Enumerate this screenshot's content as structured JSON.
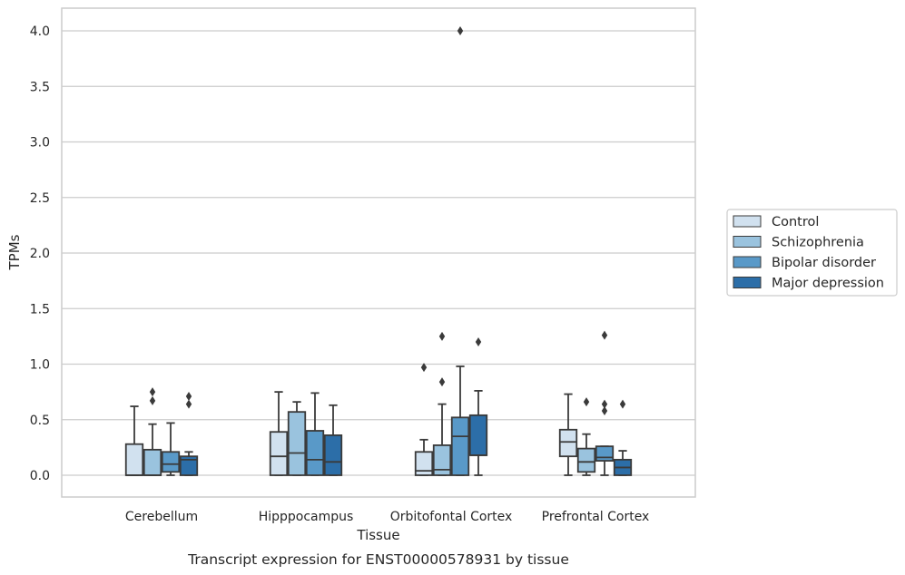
{
  "caption": "Transcript expression for ENST00000578931 by tissue",
  "chart_data": {
    "type": "box",
    "xlabel": "Tissue",
    "ylabel": "TPMs",
    "ylim": [
      -0.2,
      4.2
    ],
    "yticks": [
      "0.0",
      "0.5",
      "1.0",
      "1.5",
      "2.0",
      "2.5",
      "3.0",
      "3.5",
      "4.0"
    ],
    "grid": "horizontal",
    "legend_position": "right",
    "categories": [
      "Cerebellum",
      "Hipppocampus",
      "Orbitofontal Cortex",
      "Prefrontal Cortex"
    ],
    "series": [
      {
        "name": "Control",
        "color": "#d1e1ef",
        "boxes": [
          {
            "whislo": 0.0,
            "q1": 0.0,
            "med": 0.0,
            "q3": 0.28,
            "whishi": 0.62,
            "fliers": []
          },
          {
            "whislo": 0.0,
            "q1": 0.0,
            "med": 0.17,
            "q3": 0.39,
            "whishi": 0.75,
            "fliers": []
          },
          {
            "whislo": 0.0,
            "q1": 0.0,
            "med": 0.04,
            "q3": 0.21,
            "whishi": 0.32,
            "fliers": [
              0.97
            ]
          },
          {
            "whislo": 0.0,
            "q1": 0.17,
            "med": 0.3,
            "q3": 0.41,
            "whishi": 0.73,
            "fliers": []
          }
        ]
      },
      {
        "name": "Schizophrenia",
        "color": "#9ac3de",
        "boxes": [
          {
            "whislo": 0.0,
            "q1": 0.0,
            "med": 0.0,
            "q3": 0.23,
            "whishi": 0.46,
            "fliers": [
              0.67,
              0.75
            ]
          },
          {
            "whislo": 0.0,
            "q1": 0.0,
            "med": 0.2,
            "q3": 0.57,
            "whishi": 0.66,
            "fliers": []
          },
          {
            "whislo": 0.0,
            "q1": 0.0,
            "med": 0.05,
            "q3": 0.27,
            "whishi": 0.64,
            "fliers": [
              0.84,
              1.25
            ]
          },
          {
            "whislo": 0.0,
            "q1": 0.03,
            "med": 0.12,
            "q3": 0.24,
            "whishi": 0.37,
            "fliers": [
              0.66
            ]
          }
        ]
      },
      {
        "name": "Bipolar disorder",
        "color": "#5999c8",
        "boxes": [
          {
            "whislo": 0.0,
            "q1": 0.03,
            "med": 0.1,
            "q3": 0.21,
            "whishi": 0.47,
            "fliers": []
          },
          {
            "whislo": 0.0,
            "q1": 0.0,
            "med": 0.14,
            "q3": 0.4,
            "whishi": 0.74,
            "fliers": []
          },
          {
            "whislo": 0.0,
            "q1": 0.0,
            "med": 0.35,
            "q3": 0.52,
            "whishi": 0.98,
            "fliers": [
              4.0
            ]
          },
          {
            "whislo": 0.0,
            "q1": 0.13,
            "med": 0.16,
            "q3": 0.26,
            "whishi": 0.26,
            "fliers": [
              0.58,
              0.64,
              1.26
            ]
          }
        ]
      },
      {
        "name": "Major depression",
        "color": "#2c6ea8",
        "boxes": [
          {
            "whislo": 0.0,
            "q1": 0.0,
            "med": 0.14,
            "q3": 0.17,
            "whishi": 0.21,
            "fliers": [
              0.64,
              0.71
            ]
          },
          {
            "whislo": 0.0,
            "q1": 0.0,
            "med": 0.12,
            "q3": 0.36,
            "whishi": 0.63,
            "fliers": []
          },
          {
            "whislo": 0.0,
            "q1": 0.18,
            "med": 0.18,
            "q3": 0.54,
            "whishi": 0.76,
            "fliers": [
              1.2
            ]
          },
          {
            "whislo": 0.0,
            "q1": 0.0,
            "med": 0.07,
            "q3": 0.14,
            "whishi": 0.22,
            "fliers": [
              0.64
            ]
          }
        ]
      }
    ]
  }
}
